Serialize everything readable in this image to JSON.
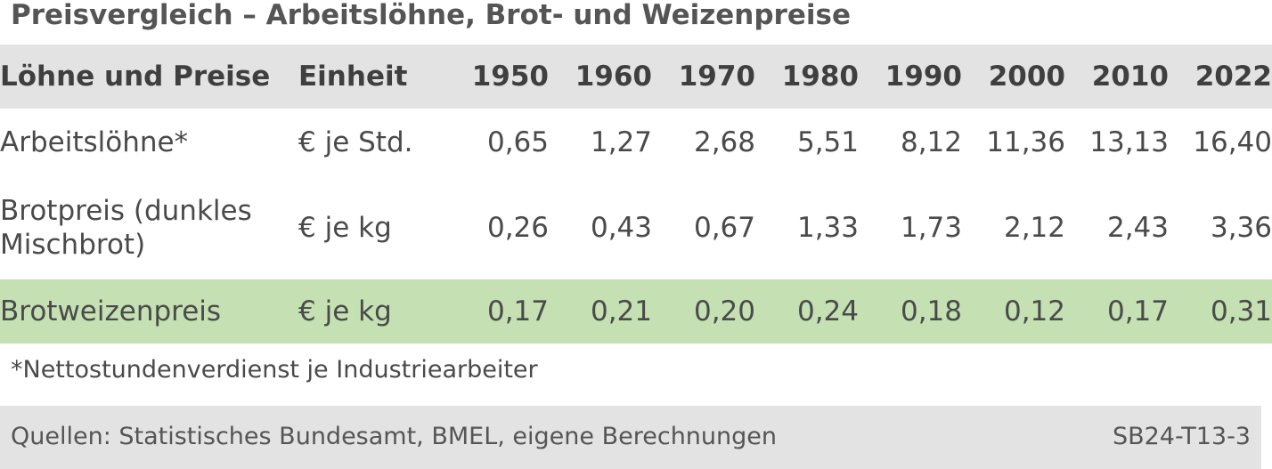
{
  "title": "Preisvergleich – Arbeitslöhne, Brot- und Weizenpreise",
  "table": {
    "headers": [
      "Löhne und Preise",
      "Einheit",
      "1950",
      "1960",
      "1970",
      "1980",
      "1990",
      "2000",
      "2010",
      "2022"
    ],
    "rows": [
      {
        "label": "Arbeitslöhne*",
        "unit": "€ je Std.",
        "values": [
          "0,65",
          "1,27",
          "2,68",
          "5,51",
          "8,12",
          "11,36",
          "13,13",
          "16,40"
        ]
      },
      {
        "label": "Brotpreis (dunkles Mischbrot)",
        "unit": "€ je kg",
        "values": [
          "0,26",
          "0,43",
          "0,67",
          "1,33",
          "1,73",
          "2,12",
          "2,43",
          "3,36"
        ]
      },
      {
        "label": "Brotweizenpreis",
        "unit": "€ je kg",
        "values": [
          "0,17",
          "0,21",
          "0,20",
          "0,24",
          "0,18",
          "0,12",
          "0,17",
          "0,31"
        ]
      }
    ]
  },
  "footnote": "*Nettostundenverdienst je Industriearbeiter",
  "source": "Quellen: Statistisches Bundesamt, BMEL, eigene Berechnungen",
  "code": "SB24-T13-3",
  "colors": {
    "header_bg": "#e3e3e3",
    "highlight_row_bg": "#c5e0b3",
    "footer_bg": "#e3e3e3"
  }
}
